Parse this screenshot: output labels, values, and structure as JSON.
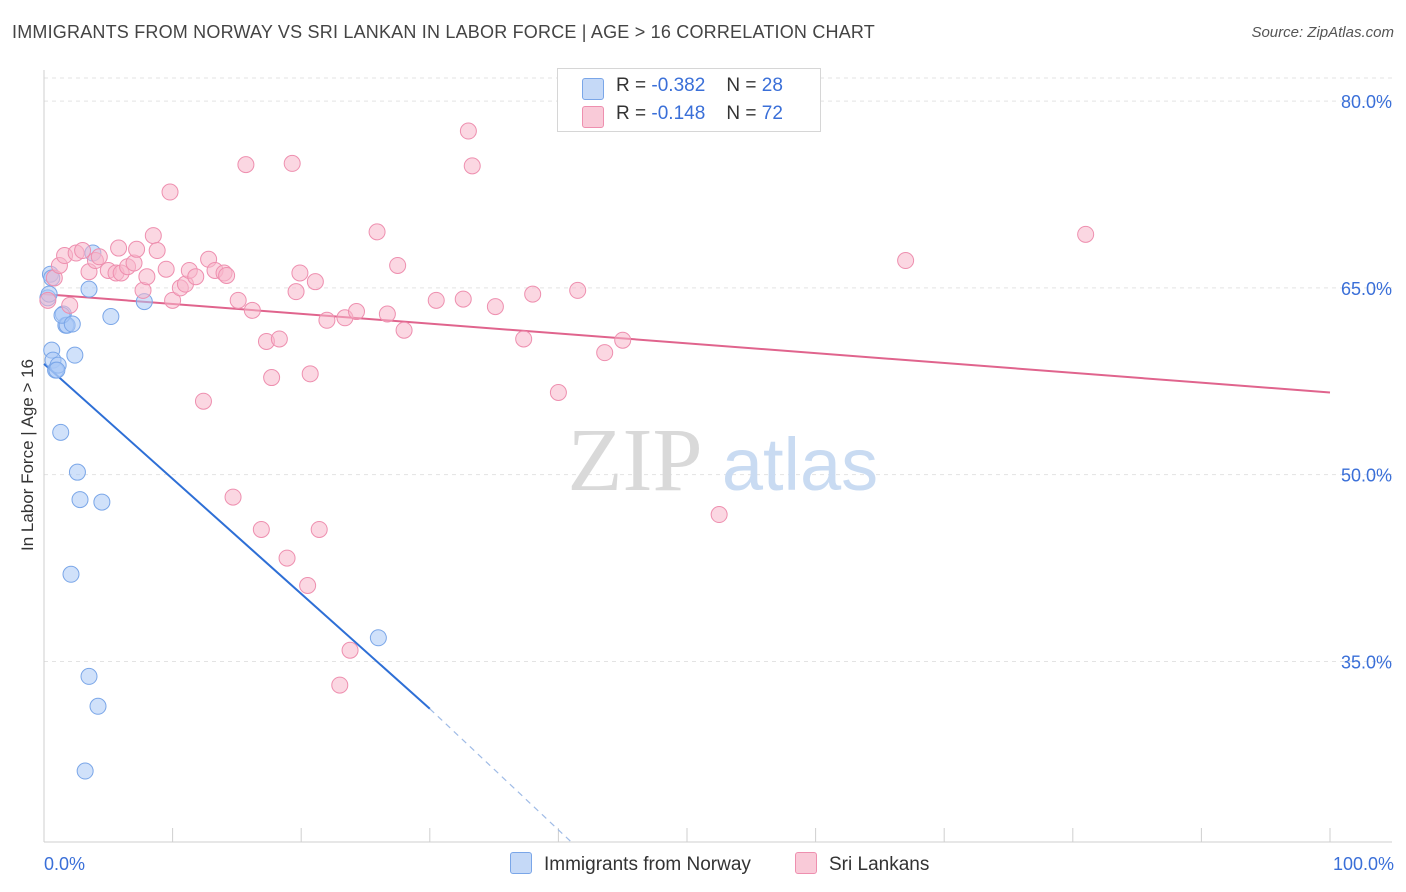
{
  "title": "IMMIGRANTS FROM NORWAY VS SRI LANKAN IN LABOR FORCE | AGE > 16 CORRELATION CHART",
  "source": "Source: ZipAtlas.com",
  "watermark": {
    "zip": "ZIP",
    "atlas": "atlas"
  },
  "legend": [
    {
      "r_label": "R =",
      "r_value": "-0.382",
      "n_label": "N =",
      "n_value": "28",
      "color": "#a9c8f5"
    },
    {
      "r_label": "R =",
      "r_value": "-0.148",
      "n_label": "N =",
      "n_value": "72",
      "color": "#f7b6ca"
    }
  ],
  "chart_data": {
    "type": "scatter",
    "ylabel": "In Labor Force | Age > 16",
    "xlim": [
      0,
      100
    ],
    "ylim": [
      20.5,
      82.5
    ],
    "x_tick_labels": [
      "0.0%",
      "100.0%"
    ],
    "y_ticks": [
      35,
      50,
      65,
      80
    ],
    "y_tick_labels": [
      "35.0%",
      "50.0%",
      "65.0%",
      "80.0%"
    ],
    "grid": true,
    "series": [
      {
        "name": "Immigrants from Norway",
        "color": "#a9c8f5",
        "stroke": "#7aa6e8",
        "line_color": "#2e6fd6",
        "trend": {
          "x": [
            0,
            30
          ],
          "y": [
            58.9,
            31.2
          ]
        },
        "trend_dashed": {
          "x": [
            30,
            41
          ],
          "y": [
            31.2,
            20.5
          ]
        },
        "points": [
          [
            0.3,
            64.2
          ],
          [
            0.5,
            66.1
          ],
          [
            0.6,
            65.8
          ],
          [
            0.6,
            60.0
          ],
          [
            0.7,
            59.2
          ],
          [
            0.9,
            58.4
          ],
          [
            1.1,
            58.8
          ],
          [
            1.3,
            53.4
          ],
          [
            1.5,
            62.9
          ],
          [
            1.7,
            62.0
          ],
          [
            1.8,
            62.0
          ],
          [
            2.1,
            42.0
          ],
          [
            2.4,
            59.6
          ],
          [
            2.6,
            50.2
          ],
          [
            2.8,
            48.0
          ],
          [
            3.5,
            64.9
          ],
          [
            3.5,
            33.8
          ],
          [
            3.8,
            67.8
          ],
          [
            4.2,
            31.4
          ],
          [
            4.5,
            47.8
          ],
          [
            5.2,
            62.7
          ],
          [
            7.8,
            63.9
          ],
          [
            26.0,
            36.9
          ],
          [
            3.2,
            26.2
          ],
          [
            1.4,
            62.8
          ],
          [
            2.2,
            62.1
          ],
          [
            1.0,
            58.4
          ],
          [
            0.4,
            64.5
          ]
        ]
      },
      {
        "name": "Sri Lankans",
        "color": "#f7b6ca",
        "stroke": "#ee8faf",
        "line_color": "#e0648d",
        "trend": {
          "x": [
            0,
            100
          ],
          "y": [
            64.5,
            56.6
          ]
        },
        "points": [
          [
            0.3,
            64.0
          ],
          [
            0.8,
            65.8
          ],
          [
            1.2,
            66.8
          ],
          [
            1.6,
            67.6
          ],
          [
            2.0,
            63.6
          ],
          [
            2.5,
            67.8
          ],
          [
            3.0,
            68.0
          ],
          [
            3.5,
            66.3
          ],
          [
            4.0,
            67.2
          ],
          [
            4.3,
            67.5
          ],
          [
            5.0,
            66.4
          ],
          [
            5.6,
            66.2
          ],
          [
            6.0,
            66.2
          ],
          [
            6.5,
            66.7
          ],
          [
            7.0,
            67.0
          ],
          [
            7.2,
            68.1
          ],
          [
            7.7,
            64.8
          ],
          [
            8.0,
            65.9
          ],
          [
            8.5,
            69.2
          ],
          [
            8.8,
            68.0
          ],
          [
            9.5,
            66.5
          ],
          [
            9.8,
            72.7
          ],
          [
            10.0,
            64.0
          ],
          [
            10.6,
            65.0
          ],
          [
            11.0,
            65.3
          ],
          [
            11.3,
            66.4
          ],
          [
            11.8,
            65.9
          ],
          [
            12.4,
            55.9
          ],
          [
            12.8,
            67.3
          ],
          [
            13.3,
            66.4
          ],
          [
            14.0,
            66.2
          ],
          [
            14.2,
            66.0
          ],
          [
            14.7,
            48.2
          ],
          [
            15.1,
            64.0
          ],
          [
            15.7,
            74.9
          ],
          [
            16.2,
            63.2
          ],
          [
            16.9,
            45.6
          ],
          [
            17.3,
            60.7
          ],
          [
            17.7,
            57.8
          ],
          [
            18.3,
            60.9
          ],
          [
            18.9,
            43.3
          ],
          [
            19.3,
            75.0
          ],
          [
            19.6,
            64.7
          ],
          [
            19.9,
            66.2
          ],
          [
            20.5,
            41.1
          ],
          [
            20.7,
            58.1
          ],
          [
            21.1,
            65.5
          ],
          [
            21.4,
            45.6
          ],
          [
            23.0,
            33.1
          ],
          [
            23.4,
            62.6
          ],
          [
            23.8,
            35.9
          ],
          [
            24.3,
            63.1
          ],
          [
            25.9,
            69.5
          ],
          [
            26.7,
            62.9
          ],
          [
            27.5,
            66.8
          ],
          [
            28.0,
            61.6
          ],
          [
            30.5,
            64.0
          ],
          [
            32.6,
            64.1
          ],
          [
            33.0,
            77.6
          ],
          [
            33.3,
            74.8
          ],
          [
            35.1,
            63.5
          ],
          [
            37.3,
            60.9
          ],
          [
            38.0,
            64.5
          ],
          [
            40.0,
            56.6
          ],
          [
            41.5,
            64.8
          ],
          [
            43.6,
            59.8
          ],
          [
            45.0,
            60.8
          ],
          [
            52.5,
            46.8
          ],
          [
            67.0,
            67.2
          ],
          [
            81.0,
            69.3
          ],
          [
            5.8,
            68.2
          ],
          [
            22.0,
            62.4
          ]
        ]
      }
    ]
  },
  "bottom_legend": [
    {
      "label": "Immigrants from Norway",
      "color": "#a9c8f5"
    },
    {
      "label": "Sri Lankans",
      "color": "#f7b6ca"
    }
  ]
}
